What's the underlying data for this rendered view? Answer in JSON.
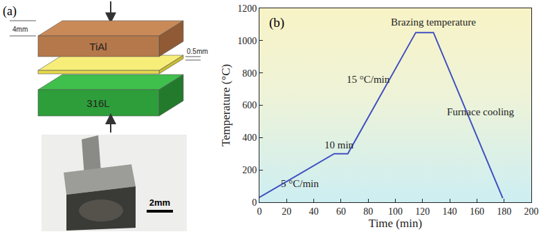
{
  "diagram": {
    "panel_label": "(a)",
    "top_layer": "TiAl",
    "bottom_layer": "316L",
    "top_thickness": "4mm",
    "foil_thickness": "0.5mm",
    "scale_bar": "2mm"
  },
  "chart_data": {
    "type": "line",
    "panel_label": "(b)",
    "x": [
      0,
      55,
      65,
      115,
      128,
      179
    ],
    "values": [
      30,
      300,
      300,
      1050,
      1050,
      25
    ],
    "color": "#3f4fc0",
    "x_label": "Time (min)",
    "y_label": "Temperature (°C)",
    "xlim": [
      0,
      200
    ],
    "xticks": [
      0,
      20,
      40,
      60,
      80,
      100,
      120,
      140,
      160,
      180,
      200
    ],
    "ylim": [
      0,
      1200
    ],
    "yticks": [
      0,
      200,
      400,
      600,
      800,
      1000,
      1200
    ],
    "grid": false,
    "annotations": [
      {
        "text": "Brazing temperature",
        "x": 128,
        "y": 1115
      },
      {
        "text": "15 °C/min",
        "x": 80,
        "y": 760
      },
      {
        "text": "10 min",
        "x": 59,
        "y": 355
      },
      {
        "text": "5 °C/min",
        "x": 30,
        "y": 115
      },
      {
        "text": "Furnace cooling",
        "x": 163,
        "y": 560
      }
    ]
  }
}
